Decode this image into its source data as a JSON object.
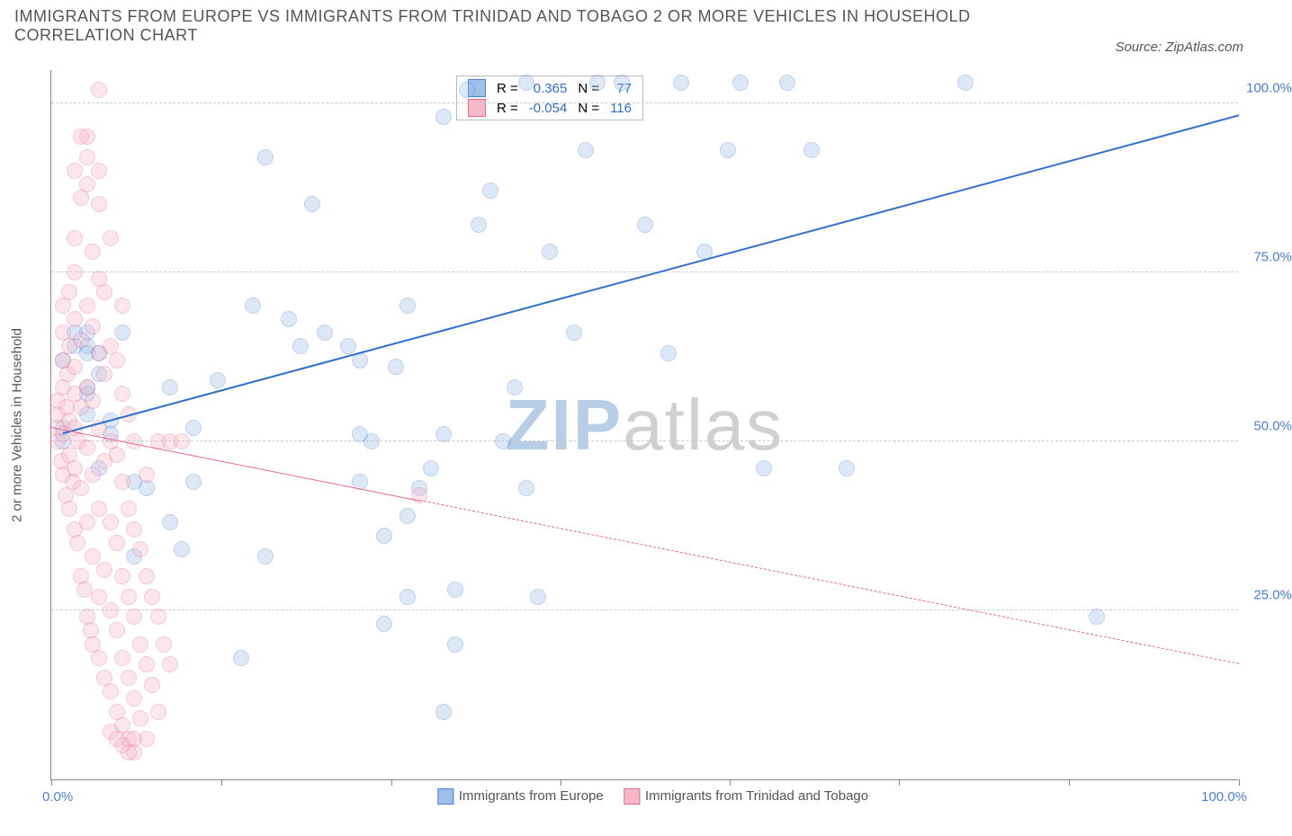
{
  "title": "IMMIGRANTS FROM EUROPE VS IMMIGRANTS FROM TRINIDAD AND TOBAGO 2 OR MORE VEHICLES IN HOUSEHOLD CORRELATION CHART",
  "source": "Source: ZipAtlas.com",
  "watermark_zip": "ZIP",
  "watermark_atlas": "atlas",
  "watermark_zip_color": "#b8cde6",
  "watermark_atlas_color": "#d0d0d0",
  "yaxis_title": "2 or more Vehicles in Household",
  "chart": {
    "type": "scatter",
    "xlim": [
      0,
      100
    ],
    "ylim": [
      0,
      105
    ],
    "x_tick_positions": [
      0,
      14.3,
      28.6,
      42.9,
      57.1,
      71.4,
      85.7,
      100
    ],
    "y_gridlines": [
      25,
      50,
      75,
      100
    ],
    "y_tick_labels": [
      "25.0%",
      "50.0%",
      "75.0%",
      "100.0%"
    ],
    "x_min_label": "0.0%",
    "x_max_label": "100.0%",
    "background_color": "#ffffff",
    "grid_color": "#cccccc",
    "point_radius": 9,
    "point_opacity": 0.35,
    "series": [
      {
        "name": "Immigrants from Europe",
        "short": "europe",
        "fill": "#9ec0e8",
        "stroke": "#4a7fd6",
        "r_label": "R =",
        "r_value": "0.365",
        "n_label": "N =",
        "n_value": "77",
        "trend": {
          "x1": 1,
          "y1": 51,
          "x2": 100,
          "y2": 98,
          "color": "#2f6fd0",
          "width": 2,
          "dash": "solid",
          "solid_until_x": 100
        },
        "points": [
          [
            1,
            52
          ],
          [
            1,
            50
          ],
          [
            1,
            62
          ],
          [
            2,
            66
          ],
          [
            2,
            64
          ],
          [
            3,
            66
          ],
          [
            3,
            64
          ],
          [
            3,
            58
          ],
          [
            3,
            54
          ],
          [
            4,
            46
          ],
          [
            5,
            53
          ],
          [
            5,
            51
          ],
          [
            18,
            33
          ],
          [
            8,
            43
          ],
          [
            10,
            38
          ],
          [
            12,
            52
          ],
          [
            14,
            59
          ],
          [
            16,
            18
          ],
          [
            17,
            70
          ],
          [
            18,
            92
          ],
          [
            20,
            68
          ],
          [
            21,
            64
          ],
          [
            22,
            85
          ],
          [
            23,
            66
          ],
          [
            25,
            64
          ],
          [
            27,
            50
          ],
          [
            28,
            36
          ],
          [
            29,
            61
          ],
          [
            30,
            39
          ],
          [
            31,
            43
          ],
          [
            33,
            98
          ],
          [
            34,
            20
          ],
          [
            35,
            102
          ],
          [
            36,
            82
          ],
          [
            37,
            87
          ],
          [
            38,
            50
          ],
          [
            39,
            58
          ],
          [
            40,
            103
          ],
          [
            41,
            27
          ],
          [
            42,
            78
          ],
          [
            44,
            66
          ],
          [
            45,
            93
          ],
          [
            46,
            103
          ],
          [
            48,
            103
          ],
          [
            50,
            82
          ],
          [
            52,
            63
          ],
          [
            53,
            103
          ],
          [
            55,
            78
          ],
          [
            57,
            93
          ],
          [
            58,
            103
          ],
          [
            60,
            46
          ],
          [
            62,
            103
          ],
          [
            64,
            93
          ],
          [
            67,
            46
          ],
          [
            77,
            103
          ],
          [
            88,
            24
          ],
          [
            10,
            58
          ],
          [
            12,
            44
          ],
          [
            7,
            33
          ],
          [
            3,
            57
          ],
          [
            30,
            70
          ],
          [
            33,
            51
          ],
          [
            32,
            46
          ],
          [
            3,
            63
          ],
          [
            4,
            63
          ],
          [
            33,
            10
          ],
          [
            11,
            34
          ],
          [
            28,
            23
          ],
          [
            30,
            27
          ],
          [
            26,
            62
          ],
          [
            7,
            44
          ],
          [
            4,
            60
          ],
          [
            6,
            66
          ],
          [
            26,
            51
          ],
          [
            26,
            44
          ],
          [
            34,
            28
          ],
          [
            40,
            43
          ]
        ]
      },
      {
        "name": "Immigrants from Trinidad and Tobago",
        "short": "trinidad",
        "fill": "#f5b8c9",
        "stroke": "#e66a8f",
        "r_label": "R =",
        "r_value": "-0.054",
        "n_label": "N =",
        "n_value": "116",
        "trend": {
          "x1": 0,
          "y1": 52,
          "x2": 100,
          "y2": 17,
          "color": "#e66a8f",
          "width": 1.5,
          "dash": "dashed",
          "solid_until_x": 31
        },
        "points": [
          [
            0.5,
            50
          ],
          [
            0.5,
            52
          ],
          [
            0.5,
            54
          ],
          [
            0.5,
            56
          ],
          [
            0.8,
            47
          ],
          [
            1,
            45
          ],
          [
            1,
            51
          ],
          [
            1,
            58
          ],
          [
            1,
            62
          ],
          [
            1,
            66
          ],
          [
            1,
            70
          ],
          [
            1.2,
            42
          ],
          [
            1.3,
            55
          ],
          [
            1.4,
            60
          ],
          [
            1.5,
            40
          ],
          [
            1.5,
            48
          ],
          [
            1.5,
            53
          ],
          [
            1.5,
            64
          ],
          [
            1.5,
            72
          ],
          [
            1.8,
            44
          ],
          [
            2,
            37
          ],
          [
            2,
            46
          ],
          [
            2,
            52
          ],
          [
            2,
            57
          ],
          [
            2,
            61
          ],
          [
            2,
            68
          ],
          [
            2,
            75
          ],
          [
            2,
            80
          ],
          [
            2.2,
            35
          ],
          [
            2.3,
            50
          ],
          [
            2.5,
            30
          ],
          [
            2.5,
            43
          ],
          [
            2.5,
            55
          ],
          [
            2.5,
            65
          ],
          [
            2.5,
            86
          ],
          [
            2.8,
            28
          ],
          [
            3,
            24
          ],
          [
            3,
            38
          ],
          [
            3,
            49
          ],
          [
            3,
            58
          ],
          [
            3,
            70
          ],
          [
            3,
            88
          ],
          [
            3,
            92
          ],
          [
            3.3,
            22
          ],
          [
            3.5,
            20
          ],
          [
            3.5,
            33
          ],
          [
            3.5,
            45
          ],
          [
            3.5,
            56
          ],
          [
            3.5,
            67
          ],
          [
            3.5,
            78
          ],
          [
            4,
            18
          ],
          [
            4,
            27
          ],
          [
            4,
            40
          ],
          [
            4,
            52
          ],
          [
            4,
            63
          ],
          [
            4,
            74
          ],
          [
            4,
            85
          ],
          [
            4,
            102
          ],
          [
            4.5,
            15
          ],
          [
            4.5,
            31
          ],
          [
            4.5,
            47
          ],
          [
            4.5,
            60
          ],
          [
            4.5,
            72
          ],
          [
            5,
            13
          ],
          [
            5,
            25
          ],
          [
            5,
            38
          ],
          [
            5,
            50
          ],
          [
            5,
            64
          ],
          [
            5,
            80
          ],
          [
            5.5,
            10
          ],
          [
            5.5,
            22
          ],
          [
            5.5,
            35
          ],
          [
            5.5,
            48
          ],
          [
            5.5,
            62
          ],
          [
            6,
            8
          ],
          [
            6,
            18
          ],
          [
            6,
            30
          ],
          [
            6,
            44
          ],
          [
            6,
            57
          ],
          [
            6,
            70
          ],
          [
            6.5,
            6
          ],
          [
            6.5,
            15
          ],
          [
            6.5,
            27
          ],
          [
            6.5,
            40
          ],
          [
            6.5,
            54
          ],
          [
            7,
            4
          ],
          [
            7,
            12
          ],
          [
            7,
            24
          ],
          [
            7,
            37
          ],
          [
            7,
            50
          ],
          [
            7.5,
            9
          ],
          [
            7.5,
            20
          ],
          [
            7.5,
            34
          ],
          [
            8,
            6
          ],
          [
            8,
            17
          ],
          [
            8,
            30
          ],
          [
            8,
            45
          ],
          [
            8.5,
            14
          ],
          [
            8.5,
            27
          ],
          [
            9,
            10
          ],
          [
            9,
            24
          ],
          [
            9,
            50
          ],
          [
            9.5,
            20
          ],
          [
            10,
            17
          ],
          [
            10,
            50
          ],
          [
            11,
            50
          ],
          [
            31,
            42
          ],
          [
            2,
            90
          ],
          [
            3,
            95
          ],
          [
            4,
            90
          ],
          [
            2.5,
            95
          ],
          [
            5,
            7
          ],
          [
            6,
            5
          ],
          [
            5.5,
            6
          ],
          [
            6.5,
            4
          ],
          [
            7,
            6
          ]
        ]
      }
    ]
  },
  "bottom_legend": {
    "series1": "Immigrants from Europe",
    "series2": "Immigrants from Trinidad and Tobago"
  }
}
